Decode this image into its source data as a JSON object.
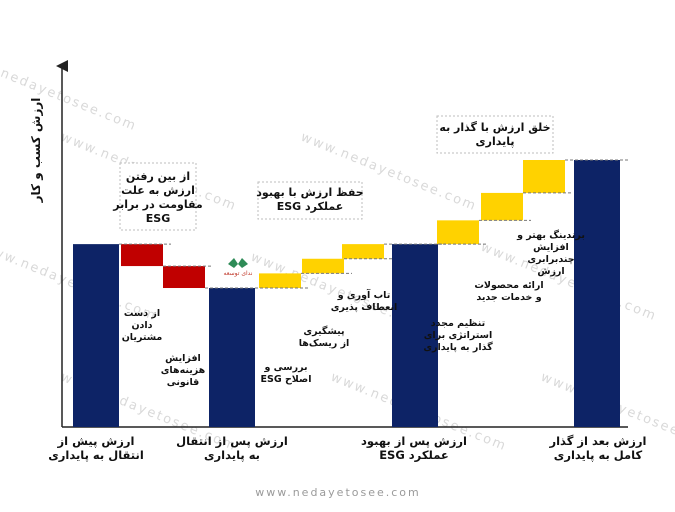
{
  "watermark_text": "www.nedayetosee.com",
  "footer_text": "www.nedayetosee.com",
  "logo_text": "ندای توسعه",
  "y_axis_label": "ارزش کسب و کار",
  "colors": {
    "navy": "#0d2366",
    "red": "#c00000",
    "yellow": "#ffd200",
    "box_border": "#bdbdbd"
  },
  "x_labels": [
    [
      "ارزش پیش از",
      "انتقال به پایداری"
    ],
    [
      "ارزش پس از انتقال",
      "به پایداری"
    ],
    [
      "ارزش پس از بهبود",
      "عملکرد ESG"
    ],
    [
      "ارزش بعد از گذار",
      "کامل به پایداری"
    ]
  ],
  "callouts": [
    [
      "از بین رفتن",
      "ارزش به علت",
      "مقاومت در برابر",
      "ESG"
    ],
    [
      "حفظ ارزش با بهبود",
      "عملکرد ESG"
    ],
    [
      "خلق ارزش با گذار به",
      "پایداری"
    ]
  ],
  "step_labels": [
    [
      "از دست",
      "دادن",
      "مشتریان"
    ],
    [
      "افزایش",
      "هزینه‌های",
      "قانونی"
    ],
    [
      "بررسی و",
      "اصلاح ESG"
    ],
    [
      "پیشگیری",
      "از ریسک‌ها"
    ],
    [
      "تاب آوری و",
      "انعطاف پذیری"
    ],
    [
      "تنظیم مجدد",
      "استراتژی برای",
      "گذار به پایداری"
    ],
    [
      "ارائه محصولات",
      "و خدمات جدید"
    ],
    [
      "برندینگ بهتر و",
      "افزایش",
      "چندبرابری",
      "ارزش"
    ]
  ],
  "chart_data": {
    "type": "waterfall",
    "title": "",
    "ylabel": "ارزش کسب و کار",
    "categories": [
      "ارزش پیش از انتقال به پایداری",
      "از دست دادن مشتریان",
      "افزایش هزینه‌های قانونی",
      "ارزش پس از انتقال به پایداری",
      "بررسی و اصلاح ESG",
      "پیشگیری از ریسک‌ها",
      "تاب آوری و انعطاف پذیری",
      "ارزش پس از بهبود عملکرد ESG",
      "تنظیم مجدد استراتژی برای گذار به پایداری",
      "ارائه محصولات و خدمات جدید",
      "برندینگ بهتر و افزایش چندبرابری ارزش",
      "ارزش بعد از گذار کامل به پایداری"
    ],
    "kinds": [
      "total",
      "decrease",
      "decrease",
      "total",
      "increase",
      "increase",
      "increase",
      "total",
      "increase",
      "increase",
      "increase",
      "total"
    ],
    "values": [
      100,
      -12,
      -12,
      76,
      8,
      8,
      8,
      100,
      13,
      15,
      18,
      146
    ],
    "bases": [
      0,
      88,
      76,
      0,
      76,
      84,
      92,
      0,
      100,
      113,
      128,
      0
    ],
    "ylim": [
      0,
      170
    ],
    "grid": false
  }
}
